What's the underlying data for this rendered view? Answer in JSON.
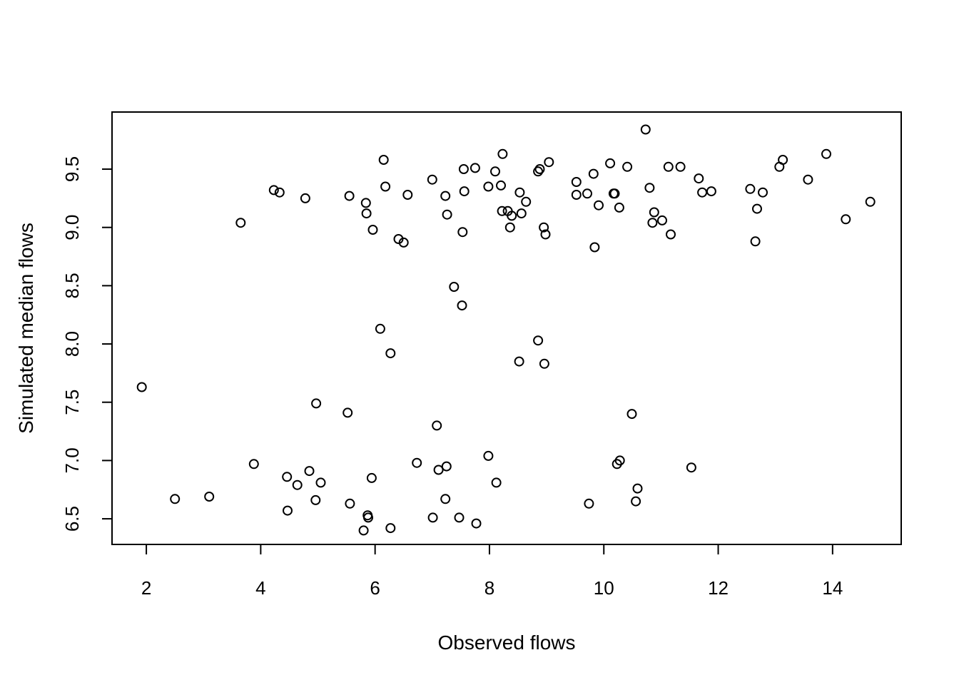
{
  "chart_data": {
    "type": "scatter",
    "title": "",
    "xlabel": "Observed flows",
    "ylabel": "Simulated median flows",
    "xlim": [
      1.4,
      15.2
    ],
    "ylim": [
      6.28,
      9.99
    ],
    "x_ticks": [
      2,
      4,
      6,
      8,
      10,
      12,
      14
    ],
    "y_ticks": [
      6.5,
      7.0,
      7.5,
      8.0,
      8.5,
      9.0,
      9.5
    ],
    "x_tick_labels": [
      "2",
      "4",
      "6",
      "8",
      "10",
      "12",
      "14"
    ],
    "y_tick_labels": [
      "6.5",
      "7.0",
      "7.5",
      "8.0",
      "8.5",
      "9.0",
      "9.5"
    ],
    "grid": false,
    "legend": "none",
    "marker": "open-circle",
    "color": "#000000",
    "points": [
      [
        10.73,
        9.84
      ],
      [
        8.23,
        9.63
      ],
      [
        13.89,
        9.63
      ],
      [
        6.15,
        9.58
      ],
      [
        13.13,
        9.58
      ],
      [
        9.04,
        9.56
      ],
      [
        10.11,
        9.55
      ],
      [
        7.75,
        9.51
      ],
      [
        10.41,
        9.52
      ],
      [
        11.13,
        9.52
      ],
      [
        11.34,
        9.52
      ],
      [
        13.07,
        9.52
      ],
      [
        7.55,
        9.5
      ],
      [
        8.88,
        9.5
      ],
      [
        8.1,
        9.48
      ],
      [
        8.85,
        9.48
      ],
      [
        9.82,
        9.46
      ],
      [
        7.0,
        9.41
      ],
      [
        11.66,
        9.42
      ],
      [
        13.57,
        9.41
      ],
      [
        9.52,
        9.39
      ],
      [
        6.18,
        9.35
      ],
      [
        7.98,
        9.35
      ],
      [
        8.2,
        9.36
      ],
      [
        10.8,
        9.34
      ],
      [
        12.56,
        9.33
      ],
      [
        4.23,
        9.32
      ],
      [
        4.33,
        9.3
      ],
      [
        7.56,
        9.31
      ],
      [
        8.53,
        9.3
      ],
      [
        11.72,
        9.3
      ],
      [
        11.88,
        9.31
      ],
      [
        12.78,
        9.3
      ],
      [
        6.57,
        9.28
      ],
      [
        9.52,
        9.28
      ],
      [
        9.71,
        9.29
      ],
      [
        10.17,
        9.29
      ],
      [
        10.19,
        9.29
      ],
      [
        5.55,
        9.27
      ],
      [
        7.23,
        9.27
      ],
      [
        4.78,
        9.25
      ],
      [
        8.64,
        9.22
      ],
      [
        14.66,
        9.22
      ],
      [
        5.84,
        9.21
      ],
      [
        9.91,
        9.19
      ],
      [
        10.27,
        9.17
      ],
      [
        12.68,
        9.16
      ],
      [
        8.22,
        9.14
      ],
      [
        8.32,
        9.14
      ],
      [
        10.88,
        9.13
      ],
      [
        8.56,
        9.12
      ],
      [
        5.85,
        9.12
      ],
      [
        7.26,
        9.11
      ],
      [
        8.39,
        9.1
      ],
      [
        14.23,
        9.07
      ],
      [
        11.02,
        9.06
      ],
      [
        3.65,
        9.04
      ],
      [
        10.85,
        9.04
      ],
      [
        8.36,
        9.0
      ],
      [
        8.95,
        9.0
      ],
      [
        5.96,
        8.98
      ],
      [
        7.53,
        8.96
      ],
      [
        8.98,
        8.94
      ],
      [
        11.17,
        8.94
      ],
      [
        6.41,
        8.9
      ],
      [
        12.65,
        8.88
      ],
      [
        6.5,
        8.87
      ],
      [
        9.84,
        8.83
      ],
      [
        7.38,
        8.49
      ],
      [
        7.52,
        8.33
      ],
      [
        6.09,
        8.13
      ],
      [
        8.85,
        8.03
      ],
      [
        6.27,
        7.92
      ],
      [
        8.52,
        7.85
      ],
      [
        8.96,
        7.83
      ],
      [
        1.92,
        7.63
      ],
      [
        4.97,
        7.49
      ],
      [
        5.52,
        7.41
      ],
      [
        10.49,
        7.4
      ],
      [
        7.08,
        7.3
      ],
      [
        7.98,
        7.04
      ],
      [
        10.28,
        7.0
      ],
      [
        6.73,
        6.98
      ],
      [
        10.23,
        6.97
      ],
      [
        3.88,
        6.97
      ],
      [
        7.25,
        6.95
      ],
      [
        11.53,
        6.94
      ],
      [
        7.11,
        6.92
      ],
      [
        4.85,
        6.91
      ],
      [
        4.46,
        6.86
      ],
      [
        5.94,
        6.85
      ],
      [
        5.05,
        6.81
      ],
      [
        8.12,
        6.81
      ],
      [
        4.64,
        6.79
      ],
      [
        10.59,
        6.76
      ],
      [
        2.5,
        6.67
      ],
      [
        3.1,
        6.69
      ],
      [
        4.96,
        6.66
      ],
      [
        7.23,
        6.67
      ],
      [
        10.56,
        6.65
      ],
      [
        5.56,
        6.63
      ],
      [
        9.74,
        6.63
      ],
      [
        4.47,
        6.57
      ],
      [
        5.87,
        6.53
      ],
      [
        5.88,
        6.51
      ],
      [
        7.01,
        6.51
      ],
      [
        7.47,
        6.51
      ],
      [
        7.77,
        6.46
      ],
      [
        6.27,
        6.42
      ],
      [
        5.8,
        6.4
      ]
    ]
  }
}
